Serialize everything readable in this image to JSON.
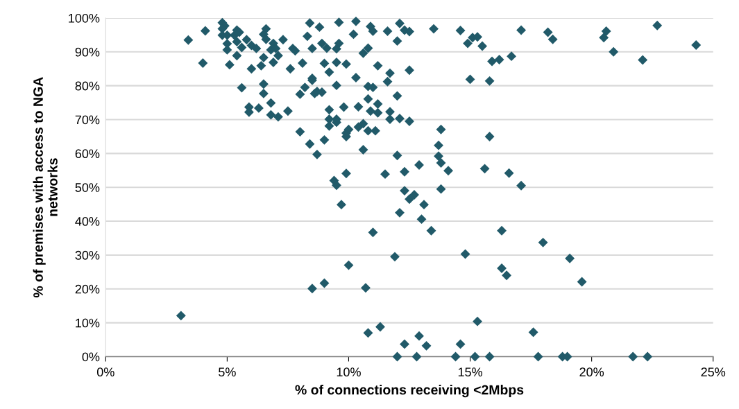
{
  "chart_data": {
    "type": "scatter",
    "xlabel": "% of connections receiving <2Mbps",
    "ylabel": "% of premises with access to NGA\nnetworks",
    "xlim": [
      0,
      25
    ],
    "xticks": [
      {
        "value": 0,
        "label": "0%"
      },
      {
        "value": 5,
        "label": "5%"
      },
      {
        "value": 10,
        "label": "10%"
      },
      {
        "value": 15,
        "label": "15%"
      },
      {
        "value": 20,
        "label": "20%"
      },
      {
        "value": 25,
        "label": "25%"
      }
    ],
    "ylim": [
      0,
      100
    ],
    "yticks": [
      {
        "value": 0,
        "label": "0%"
      },
      {
        "value": 10,
        "label": "10%"
      },
      {
        "value": 20,
        "label": "20%"
      },
      {
        "value": 30,
        "label": "30%"
      },
      {
        "value": 40,
        "label": "40%"
      },
      {
        "value": 50,
        "label": "50%"
      },
      {
        "value": 60,
        "label": "60%"
      },
      {
        "value": 70,
        "label": "70%"
      },
      {
        "value": 80,
        "label": "80%"
      },
      {
        "value": 90,
        "label": "90%"
      },
      {
        "value": 100,
        "label": "100%"
      }
    ],
    "grid": "y",
    "marker": "diamond",
    "series": [
      {
        "color": "#215a69",
        "x": [
          3.4,
          4.1,
          4.0,
          4.8,
          4.9,
          4.8,
          4.8,
          5.0,
          5.0,
          5.0,
          5.4,
          5.5,
          5.3,
          5.4,
          5.6,
          5.4,
          5.1,
          5.8,
          6.0,
          6.2,
          6.0,
          6.4,
          6.5,
          6.6,
          6.5,
          6.6,
          6.9,
          6.8,
          7.0,
          7.1,
          6.9,
          7.3,
          7.7,
          7.8,
          7.6,
          8.1,
          8.4,
          8.8,
          8.3,
          8.5,
          8.9,
          9.1,
          9.6,
          9.6,
          9.5,
          10.3,
          10.2,
          9.0,
          9.2,
          9.5,
          9.9,
          10.3,
          8.5,
          8.5,
          8.2,
          8.0,
          8.6,
          8.7,
          8.9,
          9.5,
          9.2,
          9.8,
          10.4,
          5.6,
          6.5,
          6.5,
          6.8,
          5.9,
          5.9,
          6.3,
          6.8,
          7.1,
          7.5,
          9.2,
          9.2,
          9.5,
          9.5,
          8.0,
          8.4,
          9.0,
          8.7,
          9.9,
          10.0,
          10.4,
          10.6,
          10.6,
          9.9,
          9.4,
          9.5,
          9.7,
          10.6,
          10.9,
          11.0,
          11.6,
          12.1,
          12.3,
          12.5,
          12.0,
          13.5,
          14.6,
          14.9,
          15.1,
          15.3,
          15.5,
          17.1,
          18.2,
          10.8,
          11.2,
          11.7,
          12.5,
          11.6,
          10.8,
          11.0,
          12.0,
          10.8,
          11.2,
          10.9,
          11.2,
          11.7,
          11.7,
          12.1,
          12.5,
          15.9,
          16.2,
          16.7,
          15.0,
          15.8,
          10.8,
          11.1,
          9.9,
          13.8,
          15.8,
          12.0,
          13.7,
          13.7,
          13.8,
          12.9,
          14.1,
          15.6,
          16.6,
          17.1,
          11.5,
          12.3,
          13.8,
          12.3,
          12.7,
          12.5,
          13.1,
          18.4,
          20.6,
          20.5,
          20.9,
          22.1,
          22.7,
          24.3,
          3.1,
          8.5,
          9.0,
          10.0,
          10.7,
          11.0,
          11.9,
          12.1,
          13.0,
          13.4,
          10.8,
          11.3,
          12.0,
          12.3,
          12.8,
          12.9,
          13.2,
          16.3,
          18.0,
          14.8,
          19.1,
          16.3,
          16.5,
          19.6,
          15.3,
          17.6,
          14.6,
          14.4,
          15.2,
          15.8,
          17.8,
          18.8,
          19.0,
          21.7,
          22.3
        ],
        "values": [
          93.5,
          96.2,
          86.7,
          98.6,
          97.7,
          96.8,
          94.9,
          94.9,
          92.4,
          90.6,
          96.4,
          95.8,
          94.9,
          93.0,
          91.3,
          88.9,
          86.2,
          93.6,
          91.9,
          91.0,
          85.0,
          85.9,
          88.3,
          96.8,
          95.2,
          93.7,
          92.5,
          90.6,
          91.0,
          88.9,
          86.9,
          93.6,
          91.0,
          90.3,
          85.0,
          86.7,
          98.5,
          97.3,
          94.6,
          91.0,
          92.5,
          91.1,
          98.7,
          92.5,
          90.9,
          99.0,
          95.2,
          86.6,
          84.0,
          86.9,
          86.4,
          82.4,
          82.2,
          81.6,
          79.5,
          77.5,
          77.7,
          78.3,
          78.1,
          80.1,
          72.9,
          73.7,
          73.8,
          79.4,
          80.5,
          77.7,
          74.9,
          73.7,
          72.2,
          73.4,
          71.4,
          70.8,
          72.5,
          70.1,
          68.1,
          70.1,
          69.2,
          66.4,
          62.8,
          64.0,
          59.7,
          66.0,
          67.1,
          67.8,
          68.8,
          61.1,
          54.1,
          52.0,
          50.6,
          44.9,
          89.6,
          97.5,
          96.1,
          96.1,
          98.4,
          96.4,
          96.0,
          93.2,
          96.8,
          96.3,
          92.5,
          94.2,
          94.4,
          91.7,
          96.4,
          95.8,
          91.1,
          85.9,
          83.7,
          84.6,
          81.2,
          79.8,
          79.5,
          77.0,
          76.1,
          74.6,
          72.5,
          72.0,
          72.3,
          70.1,
          70.3,
          69.5,
          87.2,
          87.7,
          88.7,
          81.9,
          81.4,
          66.7,
          66.7,
          65.0,
          67.1,
          65.0,
          59.4,
          62.4,
          59.2,
          57.2,
          56.6,
          54.9,
          55.5,
          54.2,
          50.5,
          53.9,
          54.6,
          49.5,
          49.0,
          47.8,
          46.5,
          44.9,
          93.7,
          96.1,
          94.2,
          90.0,
          87.6,
          97.8,
          92.0,
          12.1,
          20.1,
          21.7,
          27.0,
          20.3,
          36.7,
          29.5,
          42.5,
          40.6,
          37.2,
          7.0,
          8.8,
          0,
          3.7,
          0,
          6.1,
          3.2,
          37.2,
          33.7,
          30.3,
          29.0,
          26.1,
          24.0,
          22.1,
          10.4,
          7.2,
          3.7,
          0,
          0,
          0,
          0,
          0,
          0,
          0,
          0
        ]
      }
    ]
  }
}
